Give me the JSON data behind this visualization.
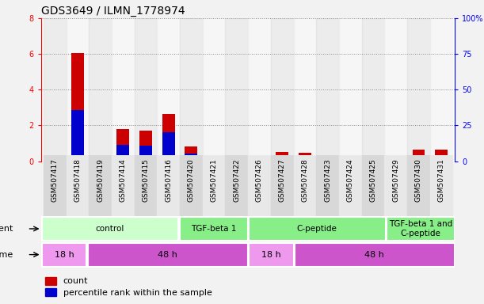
{
  "title": "GDS3649 / ILMN_1778974",
  "samples": [
    "GSM507417",
    "GSM507418",
    "GSM507419",
    "GSM507414",
    "GSM507415",
    "GSM507416",
    "GSM507420",
    "GSM507421",
    "GSM507422",
    "GSM507426",
    "GSM507427",
    "GSM507428",
    "GSM507423",
    "GSM507424",
    "GSM507425",
    "GSM507429",
    "GSM507430",
    "GSM507431"
  ],
  "count_values": [
    0.05,
    6.05,
    0.05,
    1.8,
    1.7,
    2.65,
    0.8,
    0.05,
    0.05,
    0.05,
    0.5,
    0.45,
    0.3,
    0.05,
    0.05,
    0.05,
    0.65,
    0.65
  ],
  "percentile_values": [
    0.0,
    2.85,
    0.1,
    0.9,
    0.85,
    1.6,
    0.4,
    0.05,
    0.05,
    0.05,
    0.25,
    0.3,
    0.2,
    0.0,
    0.05,
    0.05,
    0.35,
    0.35
  ],
  "ylim_left": [
    0,
    8
  ],
  "ylim_right": [
    0,
    100
  ],
  "yticks_left": [
    0,
    2,
    4,
    6,
    8
  ],
  "yticks_right": [
    0,
    25,
    50,
    75,
    100
  ],
  "ytick_labels_right": [
    "0",
    "25",
    "50",
    "75",
    "100%"
  ],
  "count_color": "#cc0000",
  "percentile_color": "#0000cc",
  "agent_groups": [
    {
      "label": "control",
      "start": 0,
      "end": 6,
      "color": "#ccffcc"
    },
    {
      "label": "TGF-beta 1",
      "start": 6,
      "end": 9,
      "color": "#88ee88"
    },
    {
      "label": "C-peptide",
      "start": 9,
      "end": 15,
      "color": "#88ee88"
    },
    {
      "label": "TGF-beta 1 and\nC-peptide",
      "start": 15,
      "end": 18,
      "color": "#88ee88"
    }
  ],
  "time_groups": [
    {
      "label": "18 h",
      "start": 0,
      "end": 2,
      "color": "#ee99ee"
    },
    {
      "label": "48 h",
      "start": 2,
      "end": 9,
      "color": "#cc55cc"
    },
    {
      "label": "18 h",
      "start": 9,
      "end": 11,
      "color": "#ee99ee"
    },
    {
      "label": "48 h",
      "start": 11,
      "end": 18,
      "color": "#cc55cc"
    }
  ],
  "grid_color": "#888888",
  "bg_color": "#f2f2f2",
  "plot_bg": "#ffffff",
  "title_fontsize": 10,
  "legend_fontsize": 8,
  "tick_fontsize": 7,
  "sample_fontsize": 6.5
}
